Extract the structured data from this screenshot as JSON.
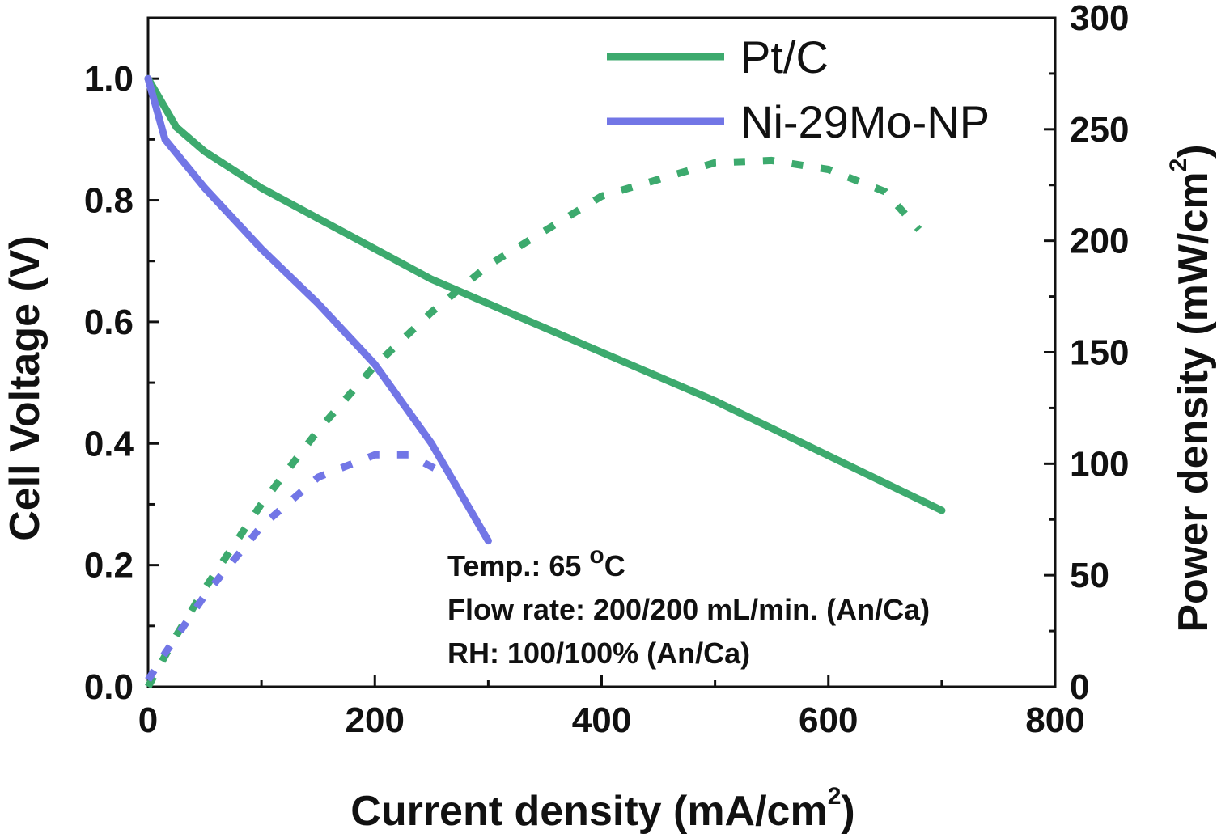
{
  "chart_data": {
    "type": "line",
    "xlabel": "Current density (mA/cm",
    "xlabel_sup": "2",
    "xlabel_end": ")",
    "ylabel_left": "Cell Voltage (V)",
    "ylabel_right": "Power density (mW/cm",
    "ylabel_right_sup": "2",
    "ylabel_right_end": ")",
    "xlim": [
      0,
      800
    ],
    "ylim_left": [
      0,
      1.1
    ],
    "ylim_right": [
      0,
      300
    ],
    "x_ticks": [
      "0",
      "200",
      "400",
      "600",
      "800"
    ],
    "y_left_ticks": [
      "0.0",
      "0.2",
      "0.4",
      "0.6",
      "0.8",
      "1.0"
    ],
    "y_right_ticks": [
      "0",
      "50",
      "100",
      "150",
      "200",
      "250",
      "300"
    ],
    "legend_position": "top-right",
    "colors": {
      "green": "#3daa6e",
      "blue": "#7276e6"
    },
    "series": [
      {
        "name": "Pt/C",
        "axis": "left",
        "style": "solid",
        "color": "#3daa6e",
        "x": [
          0,
          25,
          50,
          100,
          150,
          200,
          250,
          300,
          400,
          500,
          600,
          700
        ],
        "y": [
          1.0,
          0.92,
          0.88,
          0.82,
          0.77,
          0.72,
          0.67,
          0.63,
          0.55,
          0.47,
          0.38,
          0.29
        ]
      },
      {
        "name": "Ni-29Mo-NP",
        "axis": "left",
        "style": "solid",
        "color": "#7276e6",
        "x": [
          0,
          15,
          50,
          100,
          150,
          200,
          250,
          300
        ],
        "y": [
          1.0,
          0.9,
          0.82,
          0.72,
          0.63,
          0.53,
          0.4,
          0.24
        ]
      },
      {
        "axis": "right",
        "style": "dotted",
        "color": "#3daa6e",
        "x": [
          0,
          25,
          50,
          100,
          150,
          200,
          250,
          300,
          400,
          500,
          550,
          600,
          650,
          680
        ],
        "y": [
          0,
          23,
          44,
          82,
          115,
          144,
          168,
          189,
          220,
          235,
          236,
          232,
          222,
          205
        ]
      },
      {
        "axis": "right",
        "style": "dotted",
        "color": "#7276e6",
        "x": [
          0,
          15,
          50,
          100,
          150,
          200,
          230,
          260
        ],
        "y": [
          3,
          15,
          41,
          72,
          94,
          104,
          104,
          96
        ]
      }
    ],
    "annotations": [
      {
        "text": "Temp.: 65 ",
        "sup": "o",
        "end": "C"
      },
      {
        "text": "Flow rate: 200/200 mL/min. (An/Ca)"
      },
      {
        "text": "RH: 100/100% (An/Ca)"
      }
    ]
  }
}
